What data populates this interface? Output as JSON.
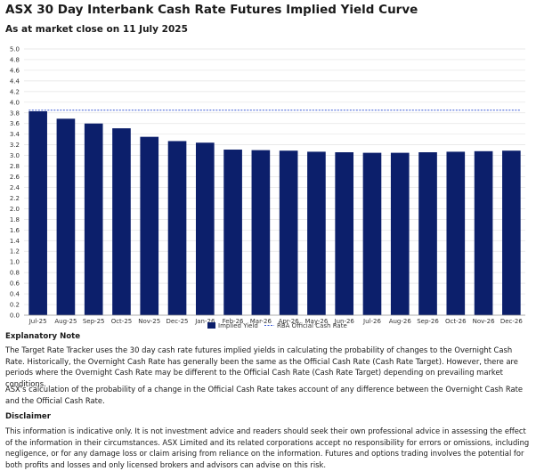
{
  "header": {
    "title": "ASX 30 Day Interbank Cash Rate Futures Implied Yield Curve",
    "subtitle": "As at market close on 11 July 2025"
  },
  "chart_data": {
    "type": "bar",
    "categories": [
      "Jul-25",
      "Aug-25",
      "Sep-25",
      "Oct-25",
      "Nov-25",
      "Dec-25",
      "Jan-26",
      "Feb-26",
      "Mar-26",
      "Apr-26",
      "May-26",
      "Jun-26",
      "Jul-26",
      "Aug-26",
      "Sep-26",
      "Oct-26",
      "Nov-26",
      "Dec-26"
    ],
    "series": [
      {
        "name": "Implied Yield",
        "values": [
          3.83,
          3.69,
          3.6,
          3.51,
          3.35,
          3.27,
          3.24,
          3.11,
          3.1,
          3.09,
          3.07,
          3.06,
          3.05,
          3.05,
          3.06,
          3.07,
          3.08,
          3.09
        ],
        "color": "#0c1f6b"
      },
      {
        "name": "RBA Official Cash Rate",
        "value": 3.85,
        "style": "dashed-line",
        "color": "#3c5bd6"
      }
    ],
    "yticks": [
      "0.0",
      "0.2",
      "0.4",
      "0.6",
      "0.8",
      "1.0",
      "1.2",
      "1.4",
      "1.6",
      "1.8",
      "2.0",
      "2.2",
      "2.4",
      "2.6",
      "2.8",
      "3.0",
      "3.2",
      "3.4",
      "3.6",
      "3.8",
      "4.0",
      "4.2",
      "4.4",
      "4.6",
      "4.8",
      "5.0"
    ],
    "ylim": [
      0,
      5.0
    ],
    "legend_position": "bottom-center",
    "grid": true
  },
  "notes": {
    "explanatory_heading": "Explanatory Note",
    "para1": "The Target Rate Tracker uses the 30 day cash rate futures implied yields in calculating the probability of changes to the Overnight Cash Rate. Historically, the Overnight Cash Rate has generally been the same as the Official Cash Rate (Cash Rate Target). However, there are periods where the Overnight Cash Rate may be different to the Official Cash Rate (Cash Rate Target) depending on prevailing market conditions.",
    "para2": "ASX's calculation of the probability of a change in the Official Cash Rate takes account of any difference between the Overnight Cash Rate and the Official Cash Rate.",
    "disclaimer_heading": "Disclaimer",
    "para3": "This information is indicative only. It is not investment advice and readers should seek their own professional advice in assessing the effect of the information in their circumstances. ASX Limited and its related corporations accept no responsibility for errors or omissions, including negligence, or for any damage loss or claim arising from reliance on the information. Futures and options trading involves the potential for both profits and losses and only licensed brokers and advisors can advise on this risk."
  }
}
